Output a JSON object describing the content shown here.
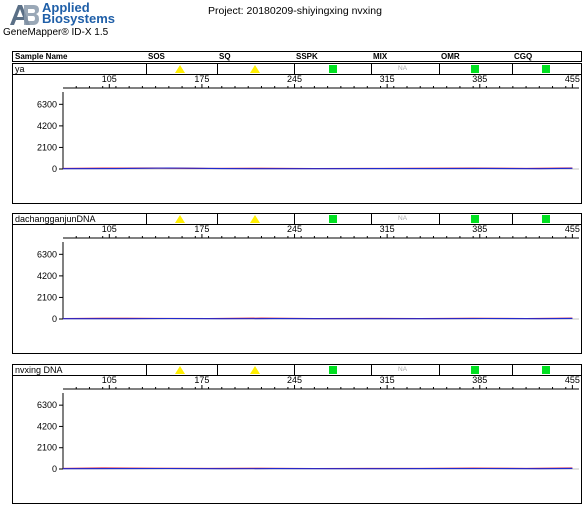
{
  "header": {
    "brand_line1": "Applied",
    "brand_line2": "Biosystems",
    "software": "GeneMapper® ID-X  1.5",
    "project": "Project: 20180209-shiyingxing nvxing"
  },
  "columns": [
    "Sample Name",
    "SOS",
    "SQ",
    "SSPK",
    "MIX",
    "OMR",
    "CGQ"
  ],
  "samples": [
    {
      "name": "ya",
      "flags": {
        "SOS": "yellow-triangle",
        "SQ": "yellow-triangle",
        "SSPK": "green-square",
        "MIX": "NA",
        "OMR": "green-square",
        "CGQ": "green-square"
      }
    },
    {
      "name": "dachangganjunDNA",
      "flags": {
        "SOS": "yellow-triangle",
        "SQ": "yellow-triangle",
        "SSPK": "green-square",
        "MIX": "NA",
        "OMR": "green-square",
        "CGQ": "green-square"
      }
    },
    {
      "name": "nvxing DNA",
      "flags": {
        "SOS": "yellow-triangle",
        "SQ": "yellow-triangle",
        "SSPK": "green-square",
        "MIX": "NA",
        "OMR": "green-square",
        "CGQ": "green-square"
      }
    }
  ],
  "na_label": "NA",
  "colors": {
    "trace_red": "#e0001b",
    "trace_blue": "#1e2bd0",
    "flag_yellow": "#ffee00",
    "flag_green": "#00e020",
    "brand": "#1f5fa8"
  },
  "chart_data": [
    {
      "type": "line",
      "sample": "ya",
      "x_ticks": [
        105,
        175,
        245,
        315,
        385,
        455
      ],
      "y_ticks": [
        0,
        2100,
        4200,
        6300
      ],
      "xlim": [
        70,
        460
      ],
      "ylim": [
        0,
        7500
      ],
      "series": [
        {
          "color": "#e0001b",
          "x": [
            70,
            100,
            140,
            180,
            220,
            260,
            300,
            340,
            380,
            420,
            455
          ],
          "y": [
            60,
            80,
            90,
            60,
            70,
            50,
            60,
            70,
            80,
            60,
            90
          ]
        },
        {
          "color": "#1e2bd0",
          "x": [
            70,
            110,
            150,
            190,
            230,
            270,
            310,
            350,
            390,
            430,
            455
          ],
          "y": [
            30,
            40,
            100,
            40,
            30,
            30,
            40,
            40,
            60,
            30,
            70
          ]
        }
      ]
    },
    {
      "type": "line",
      "sample": "dachangganjunDNA",
      "x_ticks": [
        105,
        175,
        245,
        315,
        385,
        455
      ],
      "y_ticks": [
        0,
        2100,
        4200,
        6300
      ],
      "xlim": [
        70,
        460
      ],
      "ylim": [
        0,
        7500
      ],
      "series": [
        {
          "color": "#e0001b",
          "x": [
            70,
            100,
            140,
            180,
            220,
            260,
            300,
            340,
            380,
            420,
            455
          ],
          "y": [
            50,
            70,
            60,
            50,
            80,
            40,
            60,
            50,
            70,
            50,
            80
          ]
        },
        {
          "color": "#1e2bd0",
          "x": [
            70,
            110,
            150,
            190,
            230,
            270,
            310,
            350,
            390,
            430,
            455
          ],
          "y": [
            30,
            30,
            50,
            30,
            40,
            30,
            30,
            30,
            50,
            30,
            60
          ]
        }
      ]
    },
    {
      "type": "line",
      "sample": "nvxing DNA",
      "x_ticks": [
        105,
        175,
        245,
        315,
        385,
        455
      ],
      "y_ticks": [
        0,
        2100,
        4200,
        6300
      ],
      "xlim": [
        70,
        460
      ],
      "ylim": [
        0,
        7500
      ],
      "series": [
        {
          "color": "#e0001b",
          "x": [
            70,
            100,
            140,
            180,
            220,
            260,
            300,
            340,
            380,
            420,
            455
          ],
          "y": [
            60,
            90,
            70,
            60,
            70,
            50,
            60,
            60,
            80,
            60,
            90
          ]
        },
        {
          "color": "#1e2bd0",
          "x": [
            70,
            110,
            150,
            190,
            230,
            270,
            310,
            350,
            390,
            430,
            455
          ],
          "y": [
            30,
            40,
            50,
            30,
            40,
            30,
            30,
            40,
            50,
            30,
            60
          ]
        }
      ]
    }
  ]
}
